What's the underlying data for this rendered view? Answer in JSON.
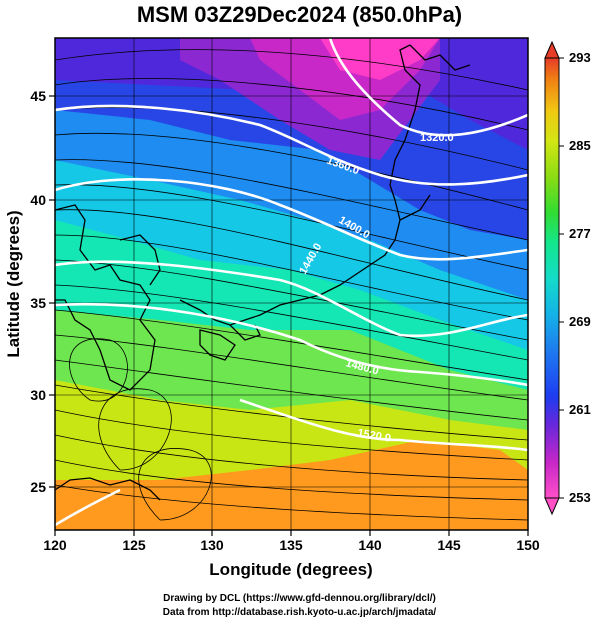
{
  "title": "MSM 03Z29Dec2024 (850.0hPa)",
  "x_axis": {
    "label": "Longitude (degrees)",
    "range": [
      120,
      150
    ],
    "ticks": [
      "120",
      "125",
      "130",
      "135",
      "140",
      "145",
      "150"
    ]
  },
  "y_axis": {
    "label": "Latitude  (degrees)",
    "range": [
      22.5,
      47.5
    ],
    "ticks": [
      "25",
      "30",
      "35",
      "40",
      "45"
    ]
  },
  "colorbar": {
    "range": [
      253,
      293
    ],
    "ticks": [
      "253",
      "261",
      "269",
      "277",
      "285",
      "293"
    ],
    "colors": [
      "#ff50c8",
      "#c828c8",
      "#6428dc",
      "#1e3cf0",
      "#1e78f0",
      "#14b4e6",
      "#14dcc8",
      "#14e68c",
      "#32dc32",
      "#8cdc14",
      "#d2e614",
      "#f0c814",
      "#f08214",
      "#e63c28"
    ]
  },
  "contours": [
    {
      "label": "1320.0"
    },
    {
      "label": "1360.0"
    },
    {
      "label": "1400.0"
    },
    {
      "label": "1440.0"
    },
    {
      "label": "1480.0"
    },
    {
      "label": "1520.0"
    }
  ],
  "credits": {
    "line1": "Drawing by DCL (https://www.gfd-dennou.org/library/dcl/)",
    "line2": "Data from http://database.rish.kyoto-u.ac.jp/arch/jmadata/"
  }
}
